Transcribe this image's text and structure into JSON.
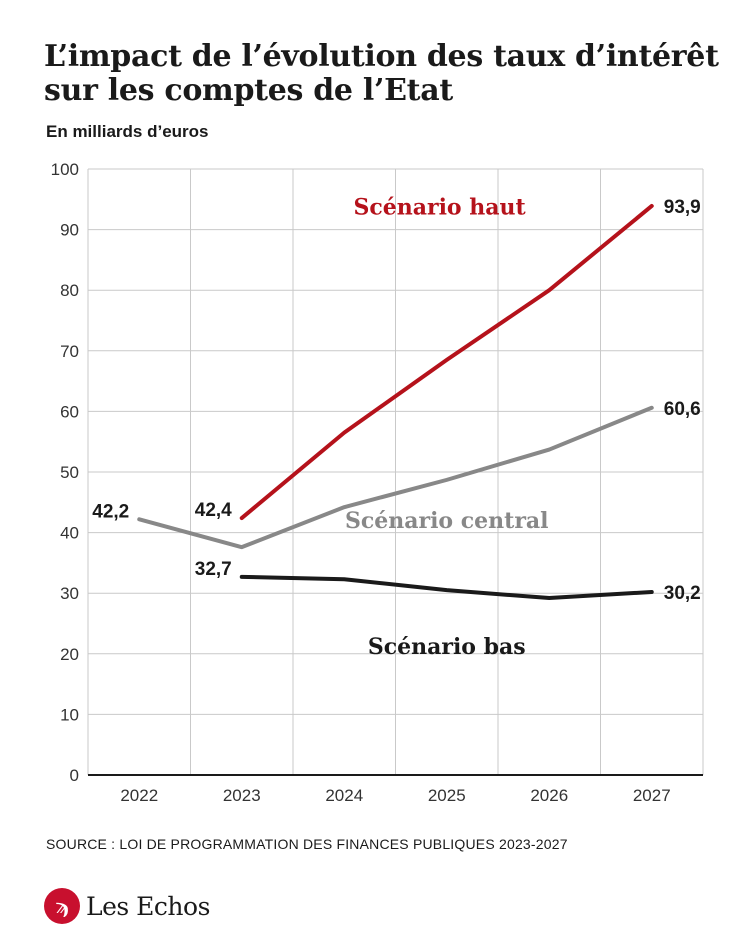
{
  "title_lines": [
    "L’impact de l’évolution des taux d’intérêt",
    "sur les comptes de l’Etat"
  ],
  "subtitle": "En milliards d’euros",
  "source": "SOURCE :  LOI DE PROGRAMMATION DES FINANCES PUBLIQUES 2023-2027",
  "brand": {
    "name": "Les Echos",
    "logo_glyph": "ϡ",
    "color": "#c8102e"
  },
  "chart_data": {
    "type": "line",
    "x": [
      "2022",
      "2023",
      "2024",
      "2025",
      "2026",
      "2027"
    ],
    "ylim": [
      0,
      100
    ],
    "yticks": [
      0,
      10,
      20,
      30,
      40,
      50,
      60,
      70,
      80,
      90,
      100
    ],
    "grid": true,
    "series": [
      {
        "name": "Scénario haut",
        "color": "#b5121b",
        "values": [
          null,
          42.4,
          56.5,
          68.5,
          80.0,
          93.9
        ],
        "point_labels": [
          null,
          "42,4",
          null,
          null,
          null,
          "93,9"
        ]
      },
      {
        "name": "Scénario central",
        "color": "#888888",
        "values": [
          42.2,
          37.6,
          44.2,
          48.7,
          53.7,
          60.6
        ],
        "point_labels": [
          "42,2",
          null,
          null,
          null,
          null,
          "60,6"
        ]
      },
      {
        "name": "Scénario bas",
        "color": "#1a1a1a",
        "values": [
          null,
          32.7,
          32.3,
          30.5,
          29.2,
          30.2
        ],
        "point_labels": [
          null,
          "32,7",
          null,
          null,
          null,
          "30,2"
        ]
      }
    ]
  }
}
